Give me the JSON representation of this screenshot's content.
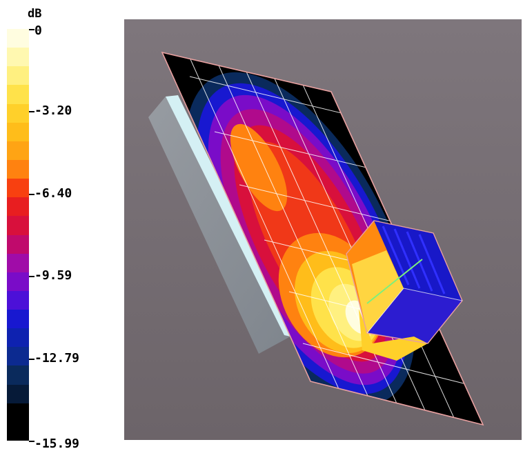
{
  "legend": {
    "unit": "dB",
    "ticks": [
      "0",
      "-3.20",
      "-6.40",
      "-9.59",
      "-12.79",
      "-15.99"
    ],
    "tick_values": [
      0,
      -3.2,
      -6.4,
      -9.59,
      -12.79,
      -15.99
    ],
    "colors": [
      "#fffde0",
      "#fff8b0",
      "#fff080",
      "#ffe24a",
      "#ffd02a",
      "#ffbd1a",
      "#ffa414",
      "#ff8210",
      "#f84010",
      "#e81e20",
      "#d8103c",
      "#c00a6c",
      "#a00ca8",
      "#7a0cc8",
      "#4c10d8",
      "#1818d0",
      "#0e22b0",
      "#0c2a90",
      "#0a2a5c",
      "#061a38",
      "#000000",
      "#000000"
    ]
  },
  "chart_data": {
    "type": "heatmap",
    "unit": "dB",
    "scale_min": -15.99,
    "scale_max": 0,
    "colorbar_ticks": [
      0,
      -3.2,
      -6.4,
      -9.59,
      -12.79,
      -15.99
    ]
  }
}
